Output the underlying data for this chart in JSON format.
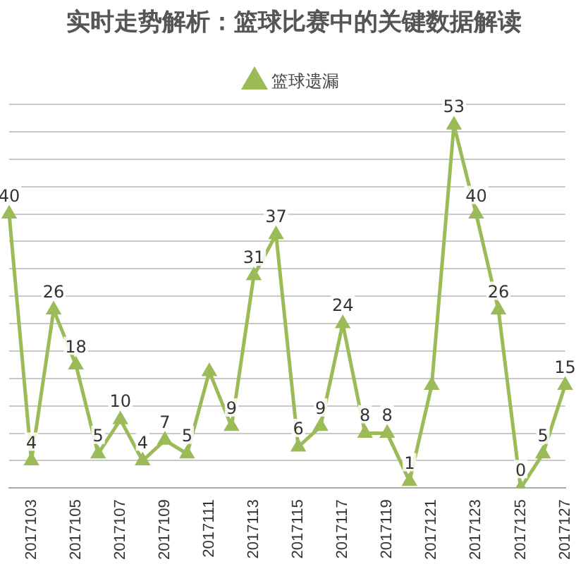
{
  "chart_data": {
    "type": "line",
    "title": "实时走势解析：篮球比赛中的关键数据解读",
    "categories": [
      null,
      "2017103",
      null,
      "2017105",
      null,
      "2017107",
      null,
      "2017109",
      null,
      "2017111",
      null,
      "2017113",
      null,
      "2017115",
      null,
      "2017117",
      null,
      "2017119",
      null,
      "2017121",
      null,
      "2017123",
      null,
      "2017125",
      null,
      "2017127"
    ],
    "series": [
      {
        "name": "篮球遗漏",
        "color": "#9bbb59",
        "values": [
          40,
          4,
          26,
          18,
          5,
          10,
          4,
          7,
          5,
          17,
          9,
          31,
          37,
          6,
          9,
          24,
          8,
          8,
          1,
          15,
          53,
          40,
          26,
          0,
          5,
          15
        ],
        "value_labels": [
          "40",
          "4",
          "26",
          "18",
          "5",
          "10",
          "4",
          "7",
          "5",
          null,
          "9",
          "31",
          "37",
          "6",
          "9",
          "24",
          "8",
          "8",
          "1",
          null,
          "53",
          "40",
          "26",
          "0",
          "5",
          "15"
        ]
      }
    ],
    "ylim": [
      0,
      56
    ],
    "yticks": [
      {
        "value": 0,
        "label": null
      },
      {
        "value": 4,
        "label": null
      },
      {
        "value": 8,
        "label": null
      },
      {
        "value": 12,
        "label": null
      },
      {
        "value": 16,
        "label": null
      },
      {
        "value": 20,
        "label": null
      },
      {
        "value": 24,
        "label": null
      },
      {
        "value": 28,
        "label": null
      },
      {
        "value": 32,
        "label": null
      },
      {
        "value": 36,
        "label": null
      },
      {
        "value": 40,
        "label": null
      },
      {
        "value": 44,
        "label": null
      },
      {
        "value": 48,
        "label": null
      },
      {
        "value": 52,
        "label": null
      },
      {
        "value": 56,
        "label": null
      }
    ],
    "tick_labels": "x",
    "grid": "y",
    "legend": "top",
    "marker": "triangle",
    "line_style": "solid"
  }
}
